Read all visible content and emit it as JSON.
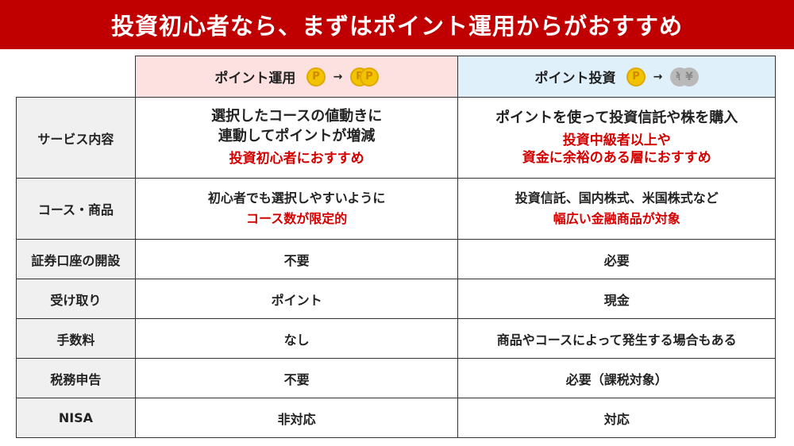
{
  "title": "投資初心者なら、まずはポイント運用からがおすすめ",
  "columns": [
    {
      "label": "ポイント運用",
      "from_icon": "point-coin",
      "to_icon": "two-point-coins",
      "coin_text": "P",
      "arrow": "→"
    },
    {
      "label": "ポイント投資",
      "from_icon": "point-coin",
      "to_icon": "two-yen-coins",
      "coin_text": "P",
      "yen_text": "¥",
      "arrow": "→"
    }
  ],
  "colors": {
    "title_bg": "#c00000",
    "highlight": "#d40000",
    "col1_header": "#fde0e0",
    "col2_header": "#dff0fb"
  },
  "rows": [
    {
      "label": "サービス内容",
      "c1": [
        "選択したコースの値動きに",
        "連動してポイントが増減"
      ],
      "c1_red": "投資初心者におすすめ",
      "c2": [
        "ポイントを使って投資信託や株を購入"
      ],
      "c2_red": [
        "投資中級者以上や",
        "資金に余裕のある層におすすめ"
      ]
    },
    {
      "label": "コース・商品",
      "c1": "初心者でも選択しやすいように",
      "c1_red": "コース数が限定的",
      "c2": "投資信託、国内株式、米国株式など",
      "c2_red": "幅広い金融商品が対象"
    },
    {
      "label": "証券口座の開設",
      "c1": "不要",
      "c2": "必要"
    },
    {
      "label": "受け取り",
      "c1": "ポイント",
      "c2": "現金"
    },
    {
      "label": "手数料",
      "c1": "なし",
      "c2": "商品やコースによって発生する場合もある"
    },
    {
      "label": "税務申告",
      "c1": "不要",
      "c2": "必要（課税対象）"
    },
    {
      "label": "NISA",
      "c1": "非対応",
      "c2": "対応"
    }
  ]
}
